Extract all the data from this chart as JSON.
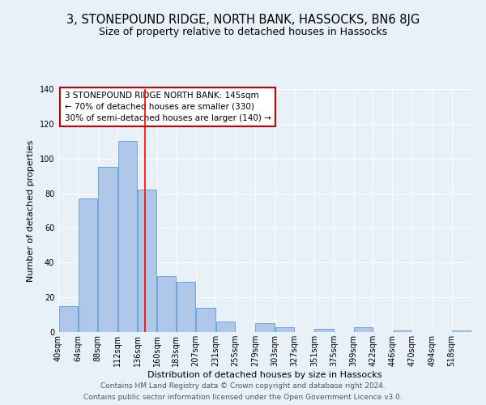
{
  "title": "3, STONEPOUND RIDGE, NORTH BANK, HASSOCKS, BN6 8JG",
  "subtitle": "Size of property relative to detached houses in Hassocks",
  "xlabel": "Distribution of detached houses by size in Hassocks",
  "ylabel": "Number of detached properties",
  "bin_labels": [
    "40sqm",
    "64sqm",
    "88sqm",
    "112sqm",
    "136sqm",
    "160sqm",
    "183sqm",
    "207sqm",
    "231sqm",
    "255sqm",
    "279sqm",
    "303sqm",
    "327sqm",
    "351sqm",
    "375sqm",
    "399sqm",
    "422sqm",
    "446sqm",
    "470sqm",
    "494sqm",
    "518sqm"
  ],
  "bin_edges": [
    40,
    64,
    88,
    112,
    136,
    160,
    183,
    207,
    231,
    255,
    279,
    303,
    327,
    351,
    375,
    399,
    422,
    446,
    470,
    494,
    518,
    542
  ],
  "bar_heights": [
    15,
    77,
    95,
    110,
    82,
    32,
    29,
    14,
    6,
    0,
    5,
    3,
    0,
    2,
    0,
    3,
    0,
    1,
    0,
    0,
    1
  ],
  "bar_color": "#aec6e8",
  "bar_edge_color": "#5b9bd5",
  "red_line_x": 145,
  "annotation_line1": "3 STONEPOUND RIDGE NORTH BANK: 145sqm",
  "annotation_line2": "← 70% of detached houses are smaller (330)",
  "annotation_line3": "30% of semi-detached houses are larger (140) →",
  "annotation_box_edge": "#cc0000",
  "ylim": [
    0,
    140
  ],
  "yticks": [
    0,
    20,
    40,
    60,
    80,
    100,
    120,
    140
  ],
  "footer1": "Contains HM Land Registry data © Crown copyright and database right 2024.",
  "footer2": "Contains public sector information licensed under the Open Government Licence v3.0.",
  "bg_color": "#e8f0f8",
  "plot_bg_color": "#e8f0f8",
  "title_fontsize": 10.5,
  "subtitle_fontsize": 9,
  "annotation_fontsize": 7.5,
  "ylabel_fontsize": 8,
  "xlabel_fontsize": 8,
  "tick_fontsize": 7,
  "footer_fontsize": 6.5
}
